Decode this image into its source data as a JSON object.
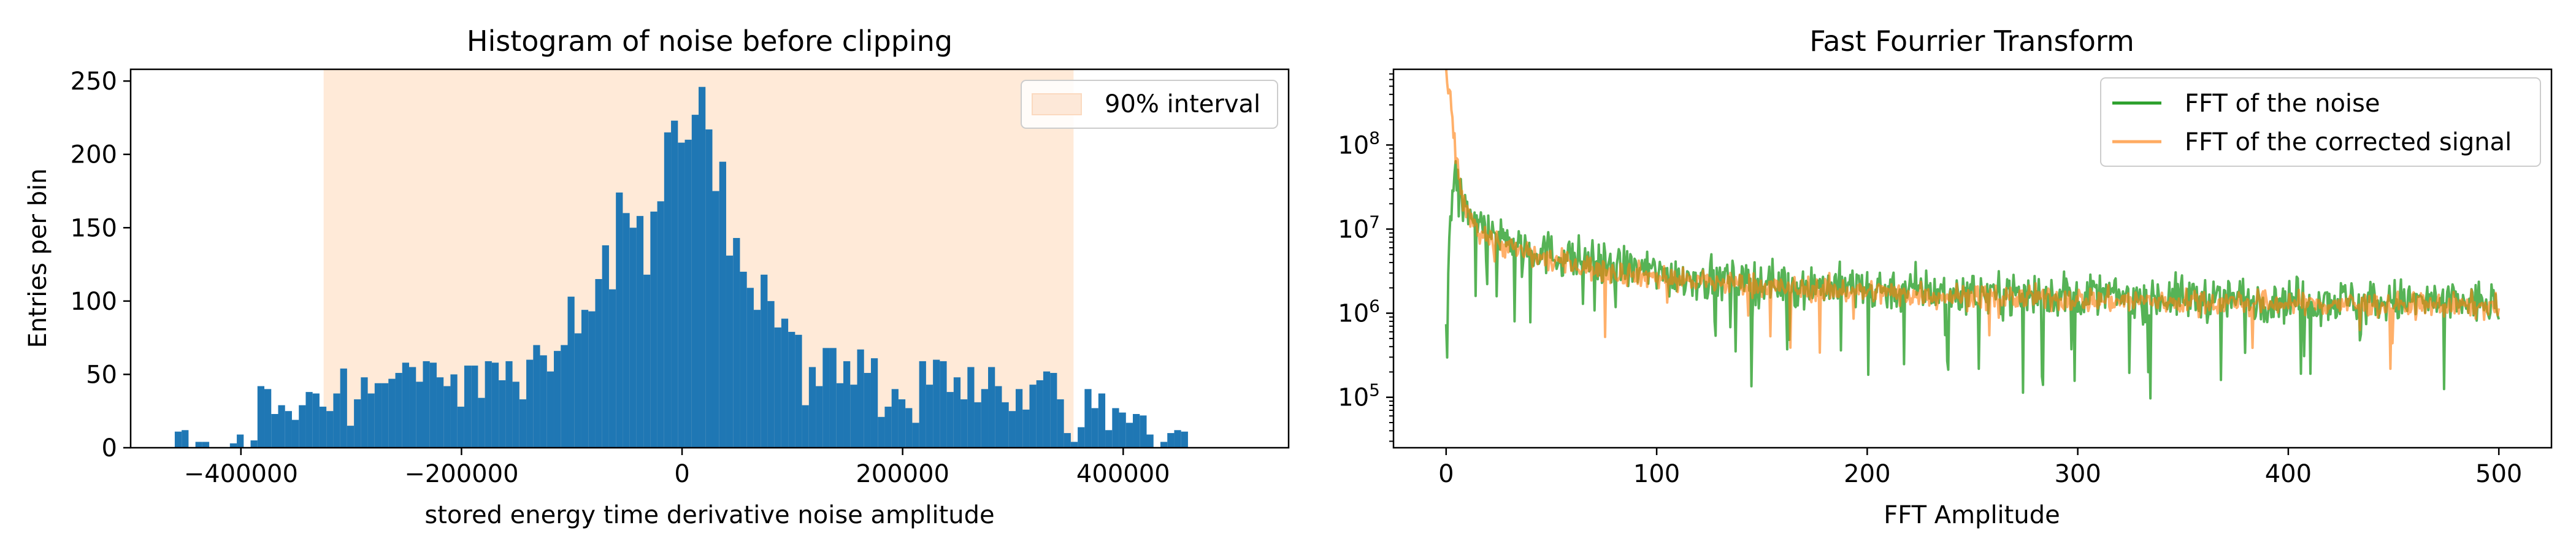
{
  "chart_data": [
    {
      "type": "bar",
      "title": "Histogram of noise before clipping",
      "xlabel": "stored energy time derivative noise amplitude",
      "ylabel": "Entries per bin",
      "xlim": [
        -500000,
        550000
      ],
      "ylim": [
        0,
        258
      ],
      "xticks": [
        -400000,
        -200000,
        0,
        200000,
        400000
      ],
      "xtick_labels": [
        "−400000",
        "−200000",
        "0",
        "200000",
        "400000"
      ],
      "yticks": [
        0,
        50,
        100,
        150,
        200,
        250
      ],
      "ytick_labels": [
        "0",
        "50",
        "100",
        "150",
        "200",
        "250"
      ],
      "bin_start": -460000,
      "bin_width": 6250,
      "values": [
        11,
        12,
        0,
        4,
        4,
        0,
        0,
        0,
        3,
        9,
        0,
        5,
        42,
        40,
        23,
        29,
        25,
        19,
        29,
        38,
        37,
        28,
        25,
        37,
        54,
        15,
        33,
        48,
        37,
        44,
        44,
        47,
        51,
        58,
        55,
        45,
        59,
        58,
        48,
        42,
        50,
        28,
        56,
        56,
        34,
        59,
        58,
        46,
        59,
        45,
        33,
        60,
        70,
        63,
        52,
        66,
        70,
        103,
        78,
        94,
        93,
        115,
        138,
        108,
        174,
        160,
        150,
        158,
        118,
        161,
        168,
        215,
        223,
        208,
        210,
        227,
        246,
        217,
        175,
        195,
        131,
        143,
        120,
        109,
        94,
        118,
        100,
        82,
        88,
        79,
        77,
        29,
        55,
        42,
        68,
        68,
        44,
        59,
        43,
        67,
        51,
        61,
        21,
        28,
        40,
        33,
        27,
        17,
        59,
        43,
        60,
        59,
        38,
        48,
        33,
        55,
        31,
        40,
        55,
        42,
        31,
        25,
        40,
        26,
        43,
        46,
        52,
        51,
        33,
        10,
        4,
        14,
        40,
        27,
        37,
        12,
        27,
        24,
        17,
        23,
        22,
        9,
        0,
        4,
        10,
        12,
        11
      ],
      "legend": [
        {
          "name": "90% interval",
          "color": "#fde8d8"
        }
      ],
      "legend_position": "top-right",
      "shaded_interval": [
        -325000,
        355000
      ],
      "colors": {
        "bars": "#1f77b4",
        "interval": "#ff7f0e"
      }
    },
    {
      "type": "line",
      "title": "Fast Fourrier Transform",
      "xlabel": "FFT Amplitude",
      "ylabel": "",
      "xlim": [
        -25,
        525
      ],
      "ylog": true,
      "ylim_exponents": [
        4.4,
        8.9
      ],
      "xticks": [
        0,
        100,
        200,
        300,
        400,
        500
      ],
      "xtick_labels": [
        "0",
        "100",
        "200",
        "300",
        "400",
        "500"
      ],
      "ytick_exponents": [
        5,
        6,
        7,
        8
      ],
      "ytick_base": "10",
      "legend_position": "top-right",
      "series": [
        {
          "name": "FFT of the noise",
          "color": "#2ca02c",
          "x": [
            0,
            2,
            4,
            6,
            8,
            10,
            12,
            14,
            16,
            20,
            25,
            30,
            40,
            50,
            60,
            70,
            80,
            90,
            100,
            110,
            120,
            140,
            160,
            180,
            200,
            220,
            240,
            260,
            280,
            300,
            320,
            340,
            360,
            380,
            400,
            420,
            440,
            460,
            480,
            500
          ],
          "y_median": [
            1000000.0,
            16000000.0,
            50000000.0,
            35000000.0,
            25000000.0,
            18000000.0,
            16000000.0,
            12000000.0,
            10000000.0,
            9000000.0,
            8000000.0,
            7000000.0,
            6000000.0,
            5000000.0,
            4500000.0,
            4000000.0,
            3600000.0,
            3300000.0,
            3000000.0,
            2800000.0,
            2600000.0,
            2400000.0,
            2200000.0,
            2100000.0,
            2000000.0,
            1900000.0,
            1800000.0,
            1750000.0,
            1700000.0,
            1650000.0,
            1600000.0,
            1550000.0,
            1500000.0,
            1480000.0,
            1450000.0,
            1420000.0,
            1400000.0,
            1380000.0,
            1350000.0,
            1300000.0
          ]
        },
        {
          "name": "FFT of the corrected signal",
          "color": "#ff7f0e",
          "x": [
            0,
            2,
            4,
            6,
            8,
            10,
            12,
            14,
            16,
            20,
            25,
            30,
            40,
            50,
            60,
            70,
            80,
            90,
            100,
            110,
            120,
            140,
            160,
            180,
            200,
            220,
            240,
            260,
            280,
            300,
            320,
            340,
            360,
            380,
            400,
            420,
            440,
            460,
            480,
            500
          ],
          "y_median": [
            700000000.0,
            300000000.0,
            100000000.0,
            40000000.0,
            22000000.0,
            16000000.0,
            14000000.0,
            11000000.0,
            9000000.0,
            8000000.0,
            7000000.0,
            6000000.0,
            5000000.0,
            4200000.0,
            3800000.0,
            3400000.0,
            3100000.0,
            2900000.0,
            2700000.0,
            2500000.0,
            2400000.0,
            2200000.0,
            2000000.0,
            1900000.0,
            1800000.0,
            1700000.0,
            1600000.0,
            1550000.0,
            1500000.0,
            1450000.0,
            1400000.0,
            1380000.0,
            1350000.0,
            1320000.0,
            1300000.0,
            1280000.0,
            1260000.0,
            1240000.0,
            1220000.0,
            1200000.0
          ]
        }
      ]
    }
  ]
}
